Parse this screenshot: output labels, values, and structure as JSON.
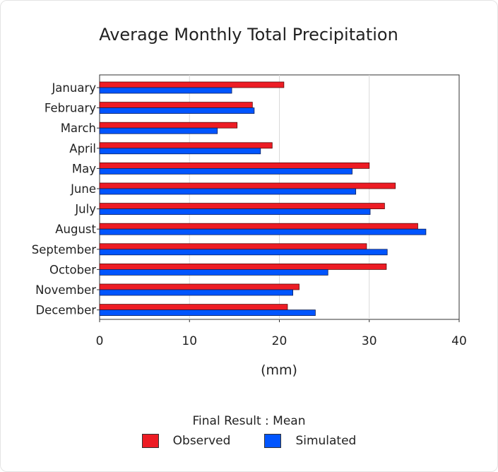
{
  "chart_data": {
    "type": "bar",
    "orientation": "horizontal",
    "title": "Average Monthly Total Precipitation",
    "xlabel": "(mm)",
    "ylabel": "",
    "xlim": [
      0,
      40
    ],
    "xticks": [
      0,
      10,
      20,
      30,
      40
    ],
    "grid": true,
    "categories": [
      "January",
      "February",
      "March",
      "April",
      "May",
      "June",
      "July",
      "August",
      "September",
      "October",
      "November",
      "December"
    ],
    "series": [
      {
        "name": "Observed",
        "color": "#ed1c24",
        "values": [
          20.5,
          17,
          15.3,
          19.2,
          30,
          32.9,
          31.7,
          35.4,
          29.7,
          31.9,
          22.2,
          20.9
        ]
      },
      {
        "name": "Simulated",
        "color": "#0055ff",
        "values": [
          14.7,
          17.2,
          13.1,
          17.9,
          28.1,
          28.5,
          30.1,
          36.3,
          32,
          25.4,
          21.5,
          24
        ]
      }
    ],
    "legend_title": "Final Result : Mean",
    "legend_position": "bottom"
  }
}
